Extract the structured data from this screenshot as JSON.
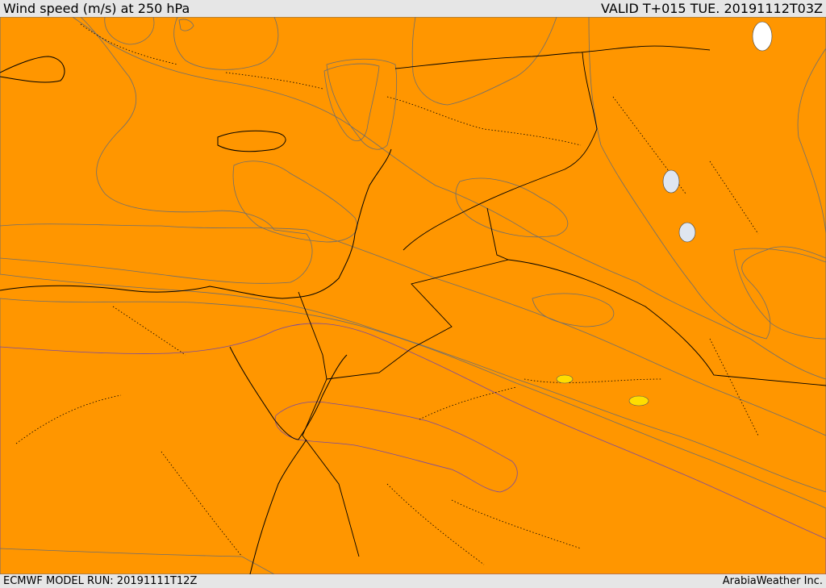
{
  "header": {
    "title": "Wind speed (m/s) at 250 hPa",
    "valid": "VALID T+015 TUE. 20191112T03Z"
  },
  "footer": {
    "model_run": "ECMWF MODEL RUN: 20191111T12Z",
    "credit": "ArabiaWeather Inc."
  },
  "colors": {
    "lt15": "#ffffff",
    "15_20": "#ffdea6",
    "20_25": "#ffff00",
    "25_30": "#ffdd00",
    "30_35": "#ffb400",
    "35_40": "#ff9600",
    "40_45": "#ff6e00",
    "45_50": "#ff4600",
    "50_55": "#ff2d00",
    "frame": "#e6e6e6"
  }
}
